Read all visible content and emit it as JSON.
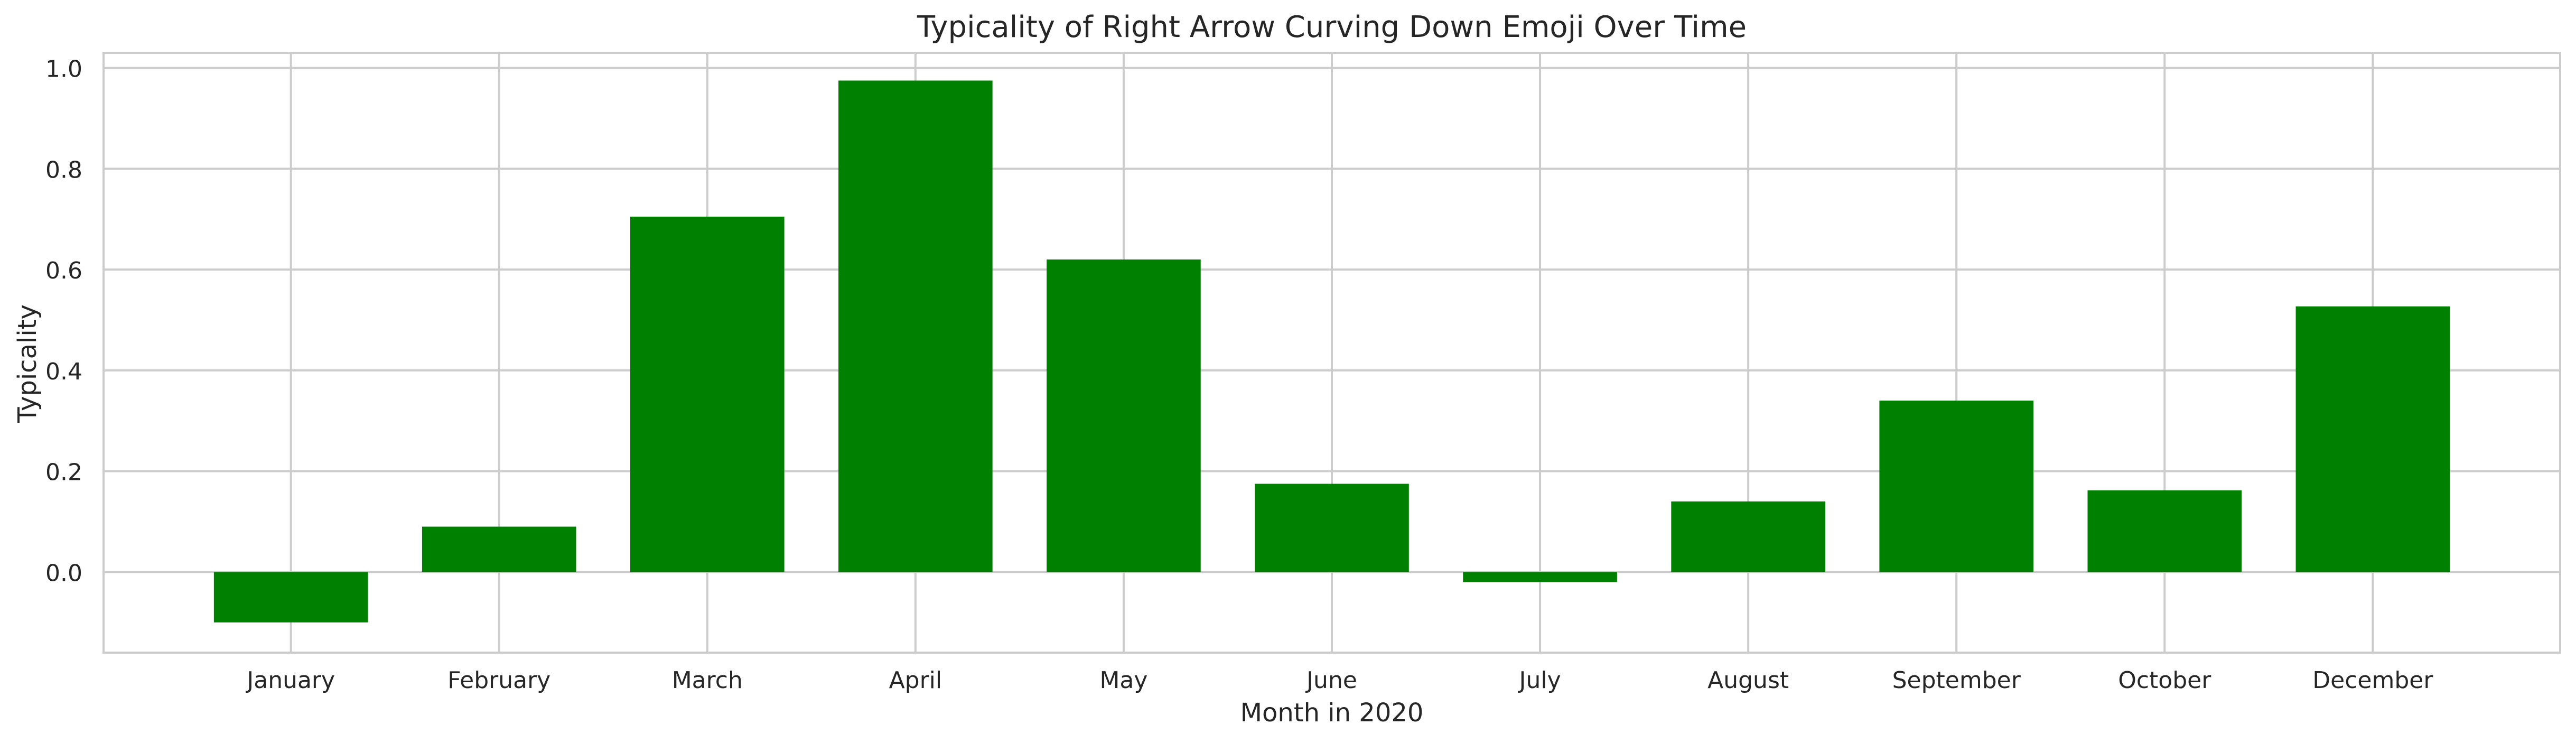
{
  "chart_data": {
    "type": "bar",
    "title": "Typicality of Right Arrow Curving Down Emoji Over Time",
    "xlabel": "Month in 2020",
    "ylabel": "Typicality",
    "categories": [
      "January",
      "February",
      "March",
      "April",
      "May",
      "June",
      "July",
      "August",
      "September",
      "October",
      "December"
    ],
    "values": [
      -0.1,
      0.09,
      0.705,
      0.975,
      0.62,
      0.175,
      -0.02,
      0.14,
      0.34,
      0.162,
      0.527
    ],
    "ylim": [
      -0.16,
      1.03
    ],
    "yticks": [
      0.0,
      0.2,
      0.4,
      0.6,
      0.8,
      1.0
    ],
    "ytick_labels": [
      "0.0",
      "0.2",
      "0.4",
      "0.6",
      "0.8",
      "1.0"
    ],
    "grid": true,
    "legend": "none",
    "colors": {
      "bar": "#008000",
      "grid": "#cccccc",
      "axis": "#cccccc",
      "text": "#262626"
    }
  }
}
